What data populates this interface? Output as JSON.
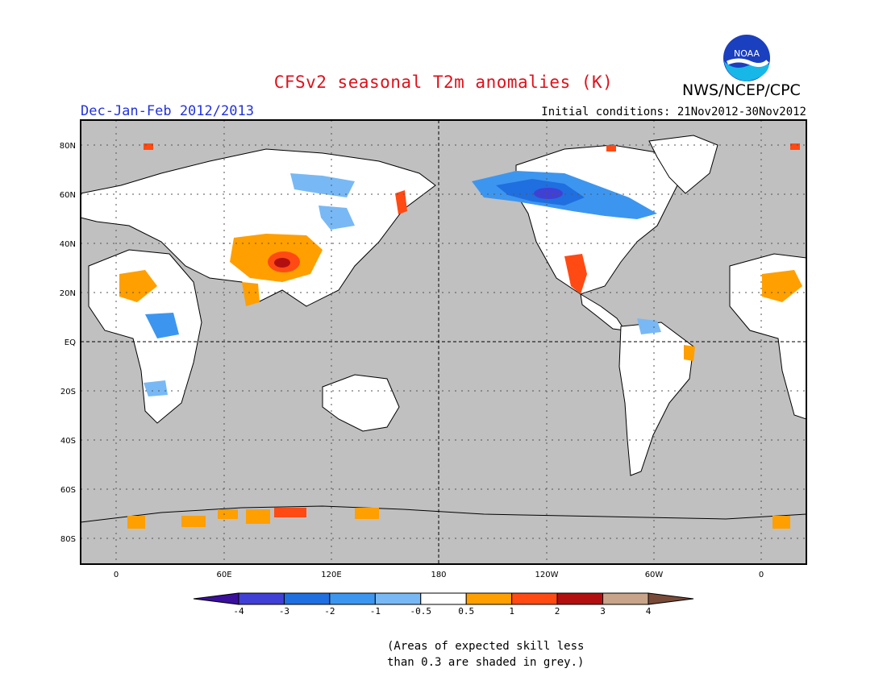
{
  "title": "CFSv2 seasonal T2m anomalies (K)",
  "agency": "NWS/NCEP/CPC",
  "logo_text": "NOAA",
  "season": "Dec-Jan-Feb 2012/2013",
  "initial_conditions": "Initial conditions: 21Nov2012-30Nov2012",
  "lat_labels": [
    "80N",
    "60N",
    "40N",
    "20N",
    "EQ",
    "20S",
    "40S",
    "60S",
    "80S"
  ],
  "lon_labels": [
    "0",
    "60E",
    "120E",
    "180",
    "120W",
    "60W",
    "0"
  ],
  "colorbar": {
    "labels": [
      "-4",
      "-3",
      "-2",
      "-1",
      "-0.5",
      "0.5",
      "1",
      "2",
      "3",
      "4"
    ],
    "colors": [
      "#3a0f9e",
      "#4040d6",
      "#1f6fe0",
      "#3c96f0",
      "#78b9f5",
      "#ffffff",
      "#ff9f00",
      "#ff4a14",
      "#b21010",
      "#c8a48a",
      "#7a4a38"
    ]
  },
  "note": [
    "(Areas of expected skill less",
    "than 0.3 are shaded in grey.)"
  ],
  "colors": {
    "ocean_grey": "#c0c0c0",
    "title_red": "#e0101a",
    "season_blue": "#2233dd"
  }
}
